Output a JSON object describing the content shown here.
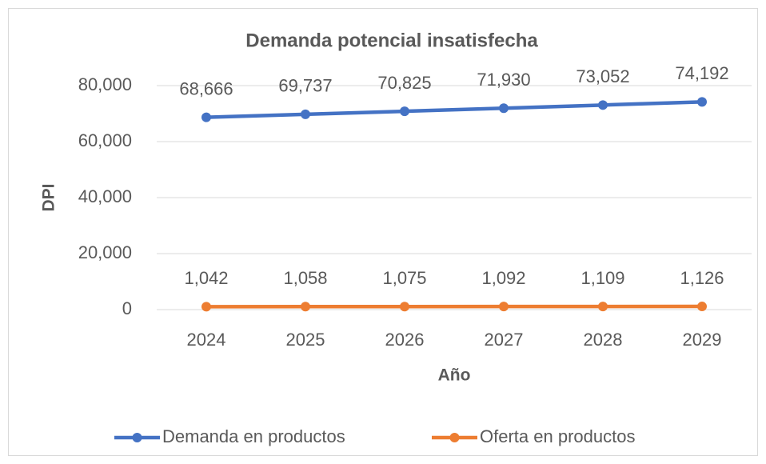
{
  "chart_data": {
    "type": "line",
    "title": "Demanda potencial insatisfecha",
    "x_label": "Año",
    "y_label": "DPI",
    "categories": [
      "2024",
      "2025",
      "2026",
      "2027",
      "2028",
      "2029"
    ],
    "series": [
      {
        "name": "Demanda en productos",
        "color": "#4472c4",
        "values": [
          68666,
          69737,
          70825,
          71930,
          73052,
          74192
        ],
        "value_labels": [
          "68,666",
          "69,737",
          "70,825",
          "71,930",
          "73,052",
          "74,192"
        ]
      },
      {
        "name": "Oferta en productos",
        "color": "#ed7d31",
        "values": [
          1042,
          1058,
          1075,
          1092,
          1109,
          1126
        ],
        "value_labels": [
          "1,042",
          "1,058",
          "1,075",
          "1,092",
          "1,109",
          "1,126"
        ]
      }
    ],
    "ylim": [
      0,
      80000
    ],
    "yticks": [
      0,
      {
        "value": 20000,
        "label": "20,000"
      },
      {
        "value": 40000,
        "label": "40,000"
      },
      {
        "value": 60000,
        "label": "60,000"
      },
      {
        "value": 80000,
        "label": "80,000"
      }
    ],
    "grid": true,
    "legend": "bottom"
  }
}
